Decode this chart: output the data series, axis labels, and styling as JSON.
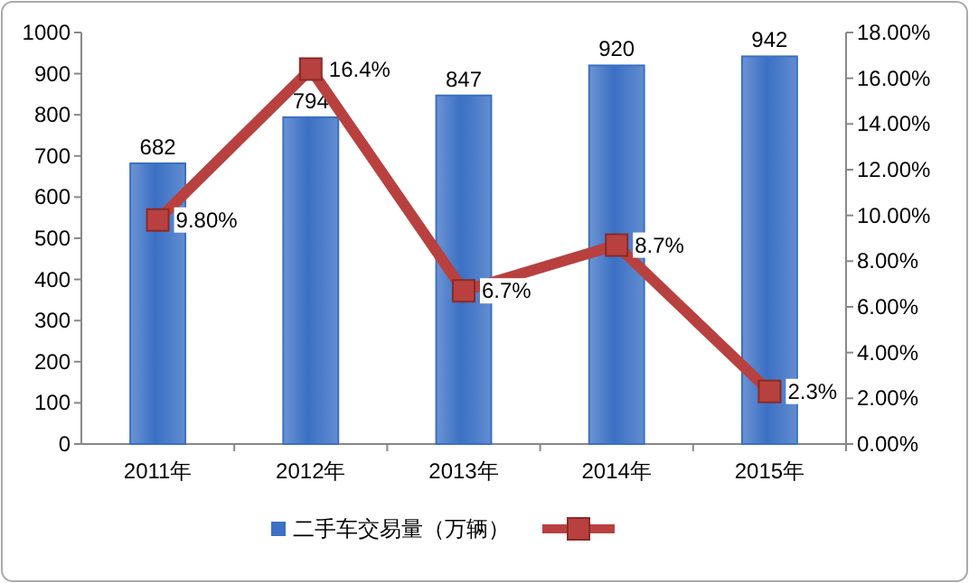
{
  "chart_data": {
    "type": "bar",
    "categories": [
      "2011年",
      "2012年",
      "2013年",
      "2014年",
      "2015年"
    ],
    "series": [
      {
        "name": "二手车交易量（万辆）",
        "color": "#3b70c4",
        "values": [
          682,
          794,
          847,
          920,
          942
        ],
        "value_labels": [
          "682",
          "794",
          "847",
          "920",
          "942"
        ]
      },
      {
        "type": "line",
        "axis": "y2",
        "color": "#b8413f",
        "marker": "square",
        "line_style": "solid",
        "values": [
          9.8,
          16.4,
          6.7,
          8.7,
          2.3
        ],
        "value_labels": [
          "9.80%",
          "16.4%",
          "6.7%",
          "8.7%",
          "2.3%"
        ]
      }
    ],
    "ylim": [
      0,
      1000
    ],
    "yticks": [
      0,
      100,
      200,
      300,
      400,
      500,
      600,
      700,
      800,
      900,
      1000
    ],
    "y2lim": [
      0,
      18
    ],
    "y2ticks": [
      {
        "value": 0,
        "label": "0.00%"
      },
      {
        "value": 2,
        "label": "2.00%"
      },
      {
        "value": 4,
        "label": "4.00%"
      },
      {
        "value": 6,
        "label": "6.00%"
      },
      {
        "value": 8,
        "label": "8.00%"
      },
      {
        "value": 10,
        "label": "10.00%"
      },
      {
        "value": 12,
        "label": "12.00%"
      },
      {
        "value": 14,
        "label": "14.00%"
      },
      {
        "value": 16,
        "label": "16.00%"
      },
      {
        "value": 18,
        "label": "18.00%"
      }
    ],
    "legend": "bottom"
  }
}
